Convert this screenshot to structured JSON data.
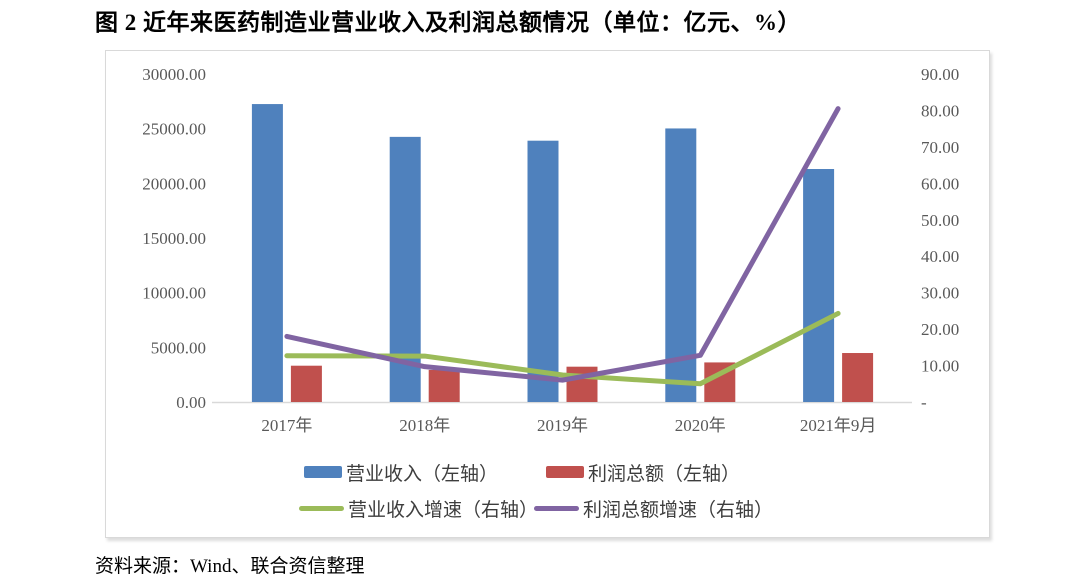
{
  "title": "图 2  近年来医药制造业营业收入及利润总额情况（单位：亿元、%）",
  "source": "资料来源：Wind、联合资信整理",
  "chart_data": {
    "type": "bar",
    "subtype": "bar-line-combo",
    "title": "近年来医药制造业营业收入及利润总额情况",
    "unit": "亿元、%",
    "categories": [
      "2017年",
      "2018年",
      "2019年",
      "2020年",
      "2021年9月"
    ],
    "series": [
      {
        "name": "营业收入（左轴）",
        "type": "bar",
        "axis": "left",
        "color": "#4F81BD",
        "values": [
          27250,
          24250,
          23900,
          25020,
          21310
        ]
      },
      {
        "name": "利润总额（左轴）",
        "type": "bar",
        "axis": "left",
        "color": "#C0504D",
        "values": [
          3320,
          2930,
          3230,
          3620,
          4480
        ]
      },
      {
        "name": "营业收入增速（右轴）",
        "type": "line",
        "axis": "right",
        "color": "#9BBB59",
        "values": [
          12.7,
          12.6,
          7.4,
          5.0,
          24.3
        ]
      },
      {
        "name": "利润总额增速（右轴）",
        "type": "line",
        "axis": "right",
        "color": "#8064A2",
        "values": [
          18.0,
          9.7,
          6.0,
          12.8,
          80.5
        ]
      }
    ],
    "left_axis": {
      "min": 0,
      "max": 30000,
      "step": 5000,
      "tick_labels": [
        "0.00",
        "5000.00",
        "10000.00",
        "15000.00",
        "20000.00",
        "25000.00",
        "30000.00"
      ]
    },
    "right_axis": {
      "min": 0,
      "max": 90,
      "step": 10,
      "tick_labels": [
        "-",
        "10.00",
        "20.00",
        "30.00",
        "40.00",
        "50.00",
        "60.00",
        "70.00",
        "80.00",
        "90.00"
      ]
    },
    "grid": false,
    "legend_position": "bottom",
    "axis_line_color": "#d9d9d9"
  }
}
